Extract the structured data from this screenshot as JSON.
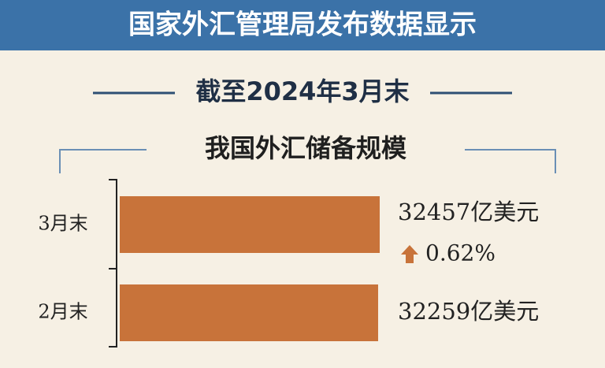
{
  "chart_data": {
    "type": "barh",
    "title": "国家外汇管理局发布数据显示",
    "subtitle": "截至2024年3月末",
    "chart_title": "我国外汇储备规模",
    "categories": [
      "3月末",
      "2月末"
    ],
    "values": [
      32457,
      32259
    ],
    "value_labels": [
      "32457亿美元",
      "32259亿美元"
    ],
    "annotation": "0.62%",
    "color": "#c8733a"
  }
}
